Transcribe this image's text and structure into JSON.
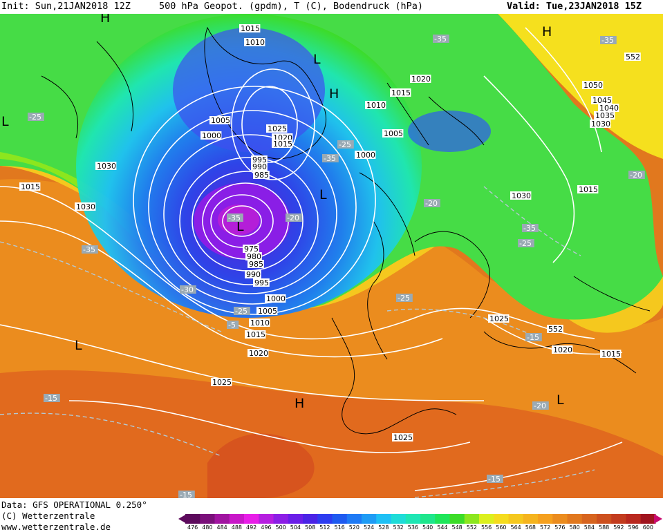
{
  "header": {
    "init": "Init: Sun,21JAN2018 12Z",
    "title": "500 hPa Geopot. (gpdm), T (C), Bodendruck (hPa)",
    "valid": "Valid: Tue,23JAN2018 15Z"
  },
  "footer": {
    "data_source": "Data: GFS OPERATIONAL 0.250°",
    "copyright": "(C) Wetterzentrale",
    "url": "www.wetterzentrale.de"
  },
  "colorbar": {
    "ticks": [
      "476",
      "480",
      "484",
      "488",
      "492",
      "496",
      "500",
      "504",
      "508",
      "512",
      "516",
      "520",
      "524",
      "528",
      "532",
      "536",
      "540",
      "544",
      "548",
      "552",
      "556",
      "560",
      "564",
      "568",
      "572",
      "576",
      "580",
      "584",
      "588",
      "592",
      "596",
      "600"
    ],
    "colors": [
      "#5c0a5c",
      "#7a107a",
      "#a014a0",
      "#c818c8",
      "#e81ee8",
      "#b61ee0",
      "#8c1ee6",
      "#6a1ee8",
      "#4a23e6",
      "#2d3cf0",
      "#1e5af0",
      "#1e7af5",
      "#1e9cf5",
      "#1ec0f5",
      "#1edcd8",
      "#1ee6b4",
      "#1ee68c",
      "#1ee65a",
      "#3cdc28",
      "#8ce61e",
      "#dcf01e",
      "#f5dc1e",
      "#f5c81e",
      "#f5b41e",
      "#f5a01e",
      "#eb8c1e",
      "#e1781e",
      "#d7641e",
      "#cd501e",
      "#c33c1e",
      "#b9281e",
      "#a0141e"
    ]
  },
  "map": {
    "pressure_system_labels": [
      {
        "text": "H",
        "lon_hint": "northwest-top"
      },
      {
        "text": "L",
        "lon_hint": "west-edge"
      },
      {
        "text": "L",
        "lon_hint": "greenland-north"
      },
      {
        "text": "H",
        "lon_hint": "greenland-east"
      },
      {
        "text": "L",
        "lon_hint": "iceland-low-center"
      },
      {
        "text": "L",
        "lon_hint": "norwegian-sea"
      },
      {
        "text": "H",
        "lon_hint": "siberia"
      },
      {
        "text": "L",
        "lon_hint": "atlantic-southwest"
      },
      {
        "text": "H",
        "lon_hint": "atlantic-azores"
      },
      {
        "text": "L",
        "lon_hint": "eastern-mediterranean"
      }
    ],
    "isobar_labels": [
      "1015",
      "1010",
      "1005",
      "1000",
      "1025",
      "1020",
      "1015",
      "995",
      "990",
      "985",
      "1030",
      "1015",
      "1030",
      "975",
      "980",
      "985",
      "990",
      "995",
      "1000",
      "1005",
      "1010",
      "1015",
      "1020",
      "1025",
      "1020",
      "1015",
      "1010",
      "1005",
      "1000",
      "1050",
      "1045",
      "1040",
      "1035",
      "1030",
      "1015",
      "1030",
      "1025",
      "1020",
      "1015",
      "1025"
    ],
    "temperature_labels": [
      "-25",
      "-35",
      "-35",
      "-25",
      "-35",
      "-20",
      "-35",
      "-20",
      "-35",
      "-25",
      "-30",
      "-25",
      "-35",
      "-25",
      "-20",
      "-15",
      "-15",
      "-20",
      "-15",
      "-15",
      "-5"
    ],
    "thickness_labels": [
      "552",
      "552"
    ]
  }
}
